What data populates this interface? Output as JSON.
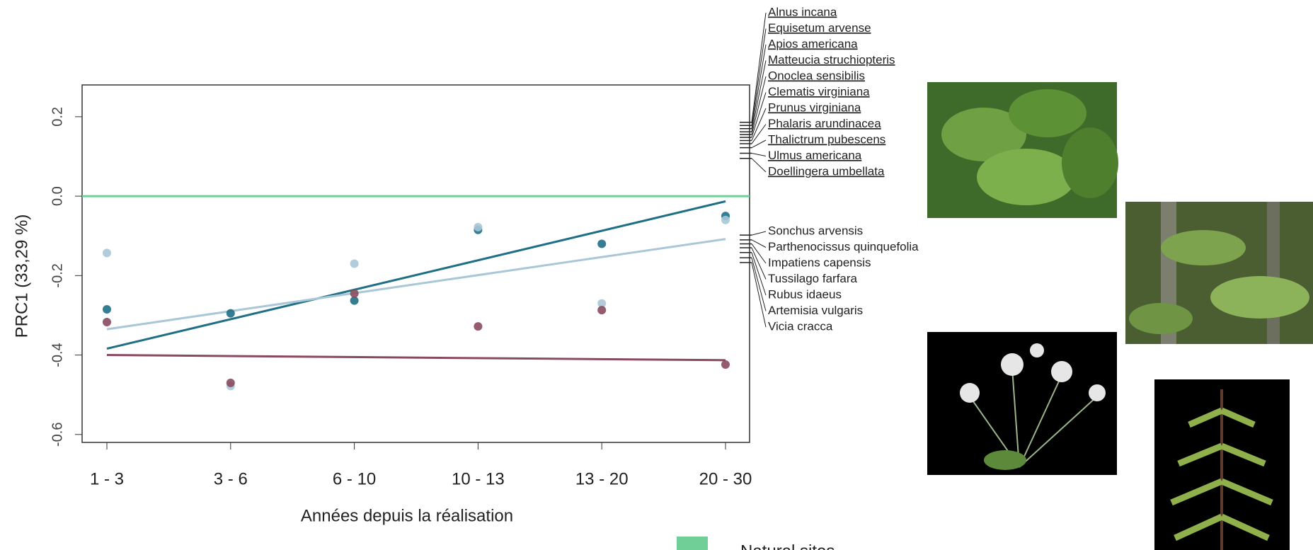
{
  "chart_data": {
    "type": "scatter",
    "x_label": "Années depuis la réalisation",
    "y_label": "PRC1 (33,29 %)",
    "categories": [
      "1 - 3",
      "3 - 6",
      "6 - 10",
      "10 - 13",
      "13 - 20",
      "20 - 30"
    ],
    "ylim": [
      -0.62,
      0.28
    ],
    "yticks": [
      -0.6,
      -0.4,
      -0.2,
      {
        "value": 0,
        "label": "0.0"
      },
      0.2
    ],
    "reference": {
      "name": "Natural sites",
      "color": "#6fcf97",
      "value": 0
    },
    "series": [
      {
        "color": "#1f6f86",
        "values": [
          -0.285,
          -0.295,
          -0.263,
          -0.085,
          -0.12,
          -0.05
        ],
        "trend": [
          -0.384,
          -0.013
        ]
      },
      {
        "color": "#a9c7d6",
        "values": [
          -0.143,
          -0.478,
          -0.17,
          -0.078,
          -0.27,
          -0.06
        ],
        "trend": [
          -0.335,
          -0.108
        ]
      },
      {
        "color": "#8a4a5e",
        "values": [
          -0.317,
          -0.47,
          -0.245,
          -0.328,
          -0.287,
          -0.424
        ],
        "trend": [
          -0.4,
          -0.413
        ]
      }
    ],
    "species_upper": [
      {
        "name": "Alnus incana",
        "value": 0.186
      },
      {
        "name": "Equisetum arvense",
        "value": 0.178
      },
      {
        "name": "Apios americana",
        "value": 0.17
      },
      {
        "name": "Matteucia struchiopteris",
        "value": 0.162
      },
      {
        "name": "Onoclea sensibilis",
        "value": 0.155
      },
      {
        "name": "Clematis virginiana",
        "value": 0.148
      },
      {
        "name": "Prunus virginiana",
        "value": 0.14
      },
      {
        "name": "Phalaris arundinacea",
        "value": 0.132
      },
      {
        "name": "Thalictrum pubescens",
        "value": 0.122
      },
      {
        "name": "Ulmus americana",
        "value": 0.108
      },
      {
        "name": "Doellingera umbellata",
        "value": 0.095
      }
    ],
    "species_lower": [
      {
        "name": "Sonchus arvensis",
        "value": -0.098
      },
      {
        "name": "Parthenocissus quinquefolia",
        "value": -0.11
      },
      {
        "name": "Impatiens capensis",
        "value": -0.12
      },
      {
        "name": "Tussilago farfara",
        "value": -0.13
      },
      {
        "name": "Rubus idaeus",
        "value": -0.142
      },
      {
        "name": "Artemisia vulgaris",
        "value": -0.155
      },
      {
        "name": "Vicia cracca",
        "value": -0.167
      }
    ]
  }
}
